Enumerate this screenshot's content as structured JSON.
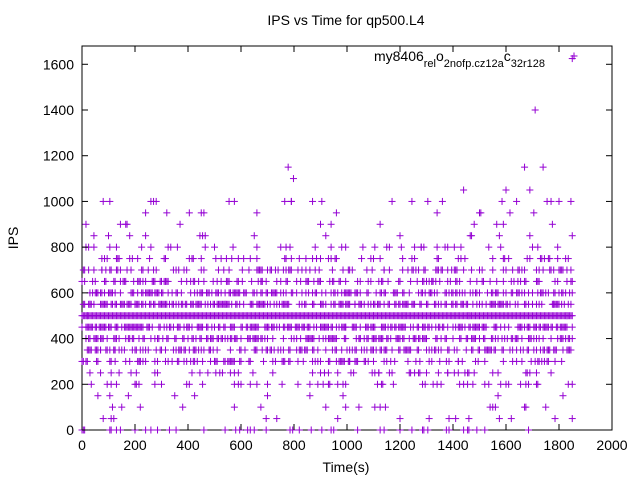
{
  "chart_data": {
    "type": "scatter",
    "title": "IPS vs Time for qp500.L4",
    "xlabel": "Time(s)",
    "ylabel": "IPS",
    "xlim": [
      0,
      2000
    ],
    "ylim": [
      0,
      1680
    ],
    "x_ticks": [
      "0",
      "200",
      "400",
      "600",
      "800",
      "1000",
      "1200",
      "1400",
      "1600",
      "1800",
      "2000"
    ],
    "y_ticks": [
      "0",
      "200",
      "400",
      "600",
      "800",
      "1000",
      "1200",
      "1400",
      "1600"
    ],
    "grid": false,
    "legend_position": "top-right",
    "legend_marker": "+",
    "legend_label": {
      "parts": [
        {
          "text": "my8406",
          "sub": false
        },
        {
          "text": "rel",
          "sub": true
        },
        {
          "text": "o",
          "sub": false
        },
        {
          "text": "2nofp.cz12a",
          "sub": true
        },
        {
          "text": "c",
          "sub": false
        },
        {
          "text": "32r128",
          "sub": true
        }
      ]
    },
    "series": [
      {
        "color": "#9400d3",
        "marker": "+",
        "levels": [
          0,
          50,
          100,
          150,
          200,
          250,
          300,
          350,
          400,
          450,
          500,
          550,
          600,
          650,
          700,
          750,
          800,
          850,
          900,
          950,
          1000,
          1050,
          1100,
          1150,
          1400,
          1625
        ],
        "time_range": [
          0,
          1850
        ],
        "points": [
          [
            0,
            0
          ],
          [
            15,
            800
          ],
          [
            30,
            550
          ],
          [
            45,
            800
          ],
          [
            60,
            150
          ],
          [
            75,
            700
          ],
          [
            20,
            500
          ],
          [
            40,
            450
          ],
          [
            55,
            600
          ],
          [
            70,
            350
          ],
          [
            90,
            650
          ],
          [
            100,
            850
          ],
          [
            110,
            50
          ],
          [
            120,
            350
          ],
          [
            130,
            750
          ],
          [
            140,
            250
          ],
          [
            150,
            100
          ],
          [
            170,
            900
          ],
          [
            180,
            850
          ],
          [
            200,
            550
          ],
          [
            220,
            300
          ],
          [
            240,
            950
          ],
          [
            260,
            1000
          ],
          [
            280,
            700
          ],
          [
            300,
            200
          ],
          [
            320,
            950
          ],
          [
            340,
            600
          ],
          [
            360,
            800
          ],
          [
            380,
            100
          ],
          [
            400,
            450
          ],
          [
            420,
            750
          ],
          [
            440,
            650
          ],
          [
            460,
            950
          ],
          [
            480,
            350
          ],
          [
            500,
            800
          ],
          [
            520,
            250
          ],
          [
            540,
            550
          ],
          [
            560,
            600
          ],
          [
            575,
            1000
          ],
          [
            590,
            200
          ],
          [
            610,
            750
          ],
          [
            630,
            300
          ],
          [
            650,
            850
          ],
          [
            660,
            950
          ],
          [
            680,
            650
          ],
          [
            700,
            400
          ],
          [
            720,
            250
          ],
          [
            735,
            50
          ],
          [
            750,
            800
          ],
          [
            765,
            1000
          ],
          [
            778,
            1150
          ],
          [
            790,
            1000
          ],
          [
            798,
            1100
          ],
          [
            810,
            600
          ],
          [
            830,
            700
          ],
          [
            850,
            450
          ],
          [
            870,
            550
          ],
          [
            890,
            650
          ],
          [
            905,
            1000
          ],
          [
            920,
            350
          ],
          [
            940,
            900
          ],
          [
            955,
            750
          ],
          [
            965,
            200
          ],
          [
            980,
            800
          ],
          [
            995,
            450
          ],
          [
            1010,
            300
          ],
          [
            1030,
            550
          ],
          [
            1050,
            400
          ],
          [
            1080,
            600
          ],
          [
            1100,
            500
          ],
          [
            1120,
            250
          ],
          [
            1140,
            700
          ],
          [
            1170,
            450
          ],
          [
            1200,
            50
          ],
          [
            1215,
            500
          ],
          [
            1230,
            550
          ],
          [
            1245,
            1000
          ],
          [
            1260,
            700
          ],
          [
            1280,
            800
          ],
          [
            1300,
            350
          ],
          [
            1320,
            650
          ],
          [
            1340,
            800
          ],
          [
            1360,
            1000
          ],
          [
            1380,
            250
          ],
          [
            1400,
            550
          ],
          [
            1410,
            650
          ],
          [
            1420,
            300
          ],
          [
            1440,
            1050
          ],
          [
            1460,
            500
          ],
          [
            1480,
            900
          ],
          [
            1500,
            400
          ],
          [
            1520,
            200
          ],
          [
            1540,
            550
          ],
          [
            1560,
            100
          ],
          [
            1580,
            450
          ],
          [
            1600,
            1050
          ],
          [
            1620,
            650
          ],
          [
            1640,
            1000
          ],
          [
            1660,
            300
          ],
          [
            1670,
            1150
          ],
          [
            1680,
            250
          ],
          [
            1690,
            1050
          ],
          [
            1700,
            800
          ],
          [
            1710,
            1400
          ],
          [
            1720,
            600
          ],
          [
            1740,
            1150
          ],
          [
            1760,
            350
          ],
          [
            1780,
            550
          ],
          [
            1800,
            1000
          ],
          [
            1815,
            400
          ],
          [
            1830,
            500
          ],
          [
            1845,
            1000
          ],
          [
            1850,
            1625
          ]
        ]
      }
    ]
  }
}
